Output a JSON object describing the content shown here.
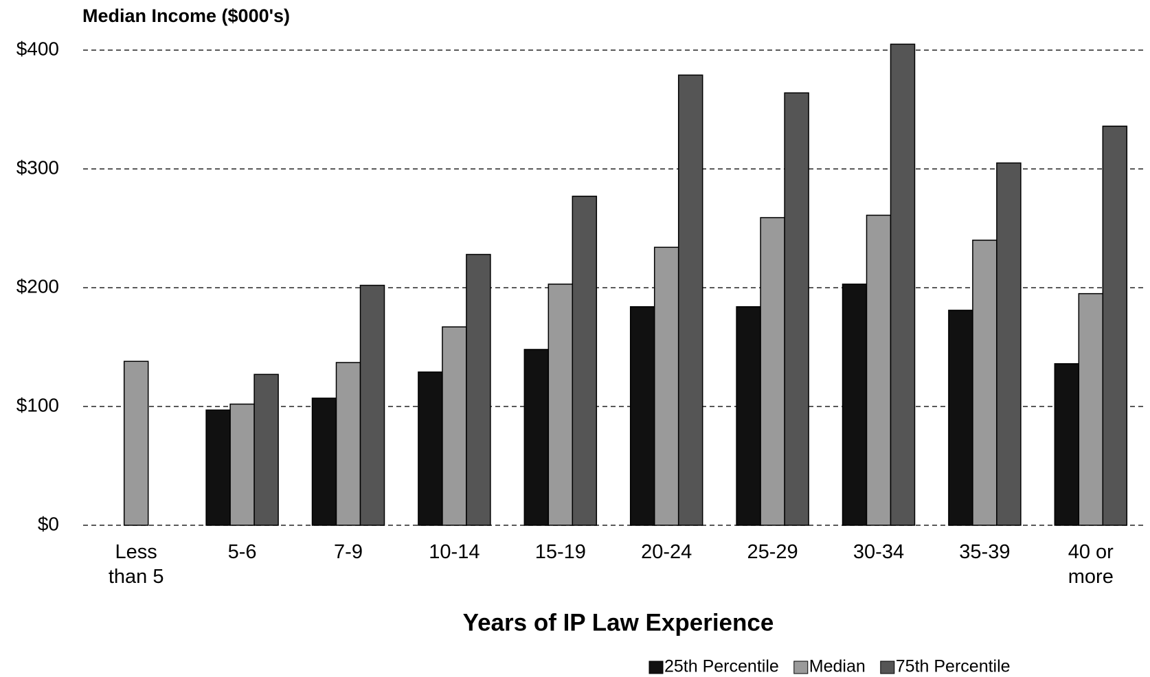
{
  "chart_data": {
    "type": "bar",
    "title": "Median Income ($000's)",
    "x_label": "Years of IP Law Experience",
    "categories": [
      "Less than 5",
      "5-6",
      "7-9",
      "10-14",
      "15-19",
      "20-24",
      "25-29",
      "30-34",
      "35-39",
      "40 or more"
    ],
    "series": [
      {
        "name": "25th Percentile",
        "color": "#111111",
        "values": [
          null,
          97,
          107,
          129,
          148,
          184,
          184,
          203,
          181,
          136
        ]
      },
      {
        "name": "Median",
        "color": "#9a9a9a",
        "values": [
          138,
          102,
          137,
          167,
          203,
          234,
          259,
          261,
          240,
          195
        ]
      },
      {
        "name": "75th Percentile",
        "color": "#555555",
        "values": [
          null,
          127,
          202,
          228,
          277,
          379,
          364,
          405,
          305,
          336
        ]
      }
    ],
    "ylim": [
      0,
      400
    ],
    "yticks": [
      {
        "value": 0,
        "label": "$0"
      },
      {
        "value": 100,
        "label": "$100"
      },
      {
        "value": 200,
        "label": "$200"
      },
      {
        "value": 300,
        "label": "$300"
      },
      {
        "value": 400,
        "label": "$400"
      }
    ],
    "grid": true,
    "legend": "bottom-right"
  }
}
